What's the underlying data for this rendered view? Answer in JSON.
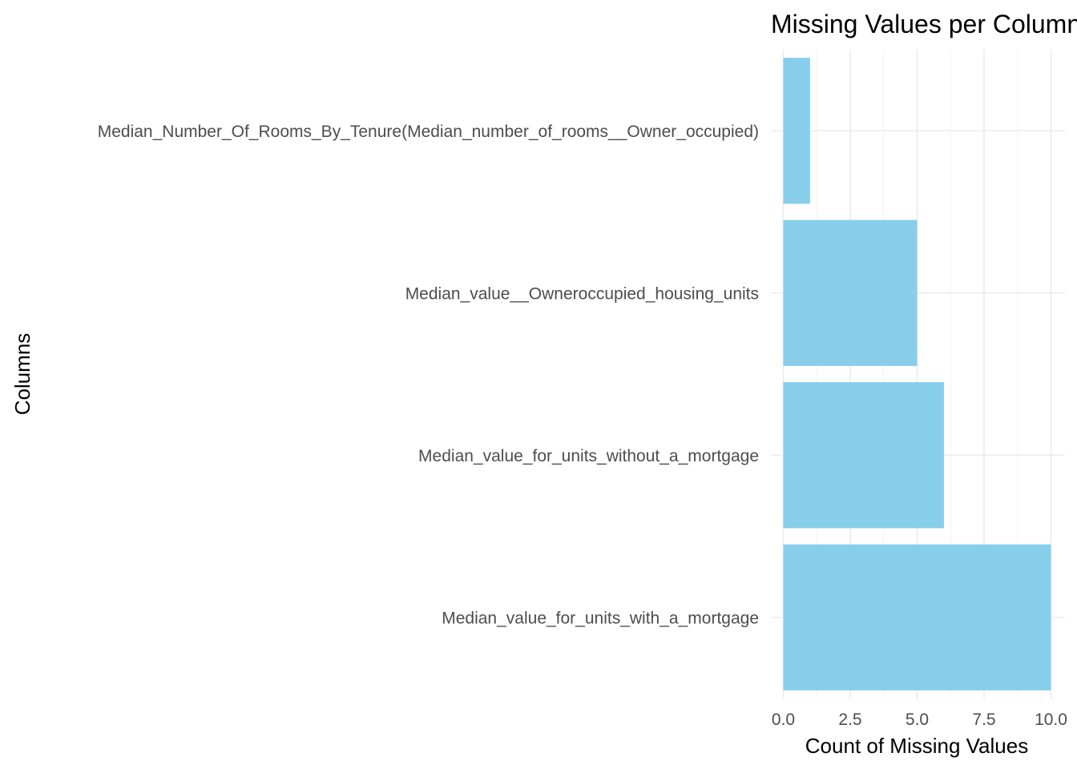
{
  "chart_data": {
    "type": "bar",
    "orientation": "horizontal",
    "title": "Missing Values per Column",
    "xlabel": "Count of Missing Values",
    "ylabel": "Columns",
    "categories": [
      "Median_Number_Of_Rooms_By_Tenure(Median_number_of_rooms__Owner_occupied)",
      "Median_value__Owneroccupied_housing_units",
      "Median_value_for_units_without_a_mortgage",
      "Median_value_for_units_with_a_mortgage"
    ],
    "values": [
      1,
      5,
      6,
      10
    ],
    "x_ticks": [
      "0.0",
      "2.5",
      "5.0",
      "7.5",
      "10.0"
    ],
    "xlim": [
      0,
      10
    ],
    "bar_color": "#87CEEB",
    "grid": true,
    "legend": "none"
  }
}
